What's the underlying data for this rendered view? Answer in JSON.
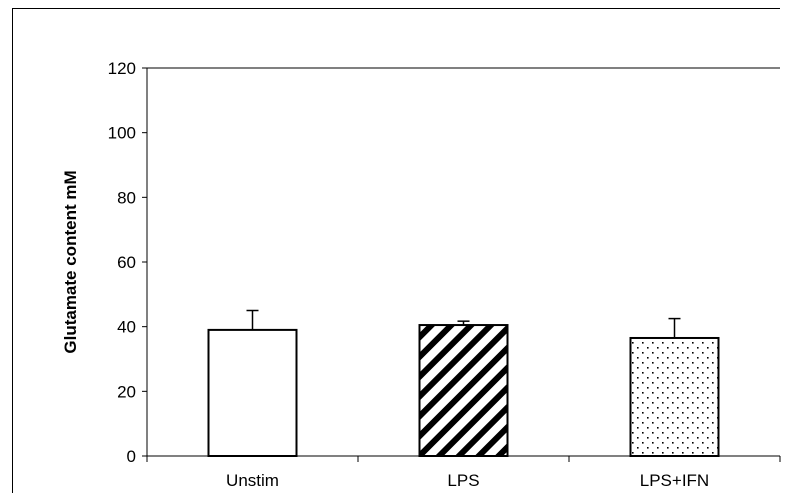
{
  "chart_data": {
    "type": "bar",
    "title": "",
    "xlabel": "",
    "ylabel": "Glutamate content mM",
    "ylim": [
      0,
      120
    ],
    "yticks": [
      0,
      20,
      40,
      60,
      80,
      100,
      120
    ],
    "categories": [
      "Unstim",
      "LPS",
      "LPS+IFN"
    ],
    "series": [
      {
        "values": [
          39,
          40.5,
          36.5
        ],
        "error": [
          6,
          1.2,
          6
        ]
      }
    ],
    "bar_patterns": [
      "solid-white",
      "diagonal-hatch",
      "dotted"
    ],
    "grid": false,
    "legend": "none"
  }
}
